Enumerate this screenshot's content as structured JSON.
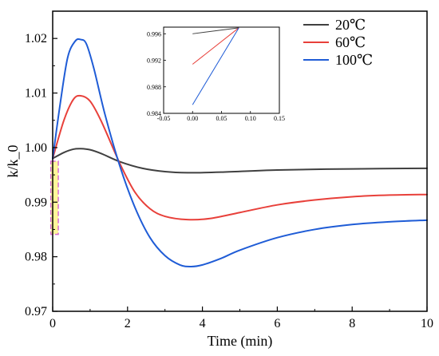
{
  "chart_data": {
    "type": "line",
    "xlabel": "Time (min)",
    "ylabel": "k/k_0",
    "xlim": [
      0,
      10
    ],
    "ylim": [
      0.97,
      1.025
    ],
    "xticks": [
      0,
      2,
      4,
      6,
      8,
      10
    ],
    "yticks": [
      0.97,
      0.98,
      0.99,
      1.0,
      1.01,
      1.02
    ],
    "ytick_labels": [
      "0.97",
      "0.98",
      "0.99",
      "1.00",
      "1.01",
      "1.02"
    ],
    "grid": false,
    "legend_position": "top-right",
    "series": [
      {
        "name": "20℃",
        "color": "#404040",
        "x": [
          0,
          0.3,
          0.55,
          0.75,
          1.0,
          1.3,
          1.8,
          2.4,
          3.0,
          3.6,
          4.5,
          6.0,
          8.0,
          10.0
        ],
        "y": [
          0.998,
          0.9991,
          0.9997,
          0.9998,
          0.9996,
          0.9989,
          0.9974,
          0.9962,
          0.9956,
          0.9954,
          0.9955,
          0.9959,
          0.9961,
          0.9962
        ]
      },
      {
        "name": "60℃",
        "color": "#e8403a",
        "x": [
          0,
          0.3,
          0.55,
          0.75,
          1.0,
          1.3,
          1.8,
          2.2,
          2.6,
          3.0,
          3.6,
          4.2,
          5.0,
          6.0,
          7.0,
          8.0,
          9.0,
          10.0
        ],
        "y": [
          0.998,
          1.005,
          1.0088,
          1.0095,
          1.0085,
          1.0048,
          0.997,
          0.9918,
          0.9888,
          0.9874,
          0.9868,
          0.987,
          0.9881,
          0.9895,
          0.9904,
          0.991,
          0.9913,
          0.9914
        ]
      },
      {
        "name": "100℃",
        "color": "#1f5cd6",
        "x": [
          0,
          0.2,
          0.4,
          0.6,
          0.75,
          0.9,
          1.1,
          1.4,
          1.8,
          2.2,
          2.6,
          3.0,
          3.4,
          3.7,
          4.0,
          4.5,
          5.0,
          6.0,
          7.0,
          8.0,
          9.0,
          10.0
        ],
        "y": [
          0.998,
          1.008,
          1.0165,
          1.0195,
          1.0198,
          1.019,
          1.0145,
          1.006,
          0.9965,
          0.989,
          0.9835,
          0.9802,
          0.9785,
          0.9782,
          0.9785,
          0.9797,
          0.9812,
          0.9835,
          0.985,
          0.9859,
          0.9864,
          0.9867
        ]
      }
    ],
    "highlight_box": {
      "x_range": [
        -0.05,
        0.15
      ],
      "y_range": [
        0.9841,
        0.9975
      ],
      "fill": "#fff79a",
      "stroke": "#d66ad1"
    },
    "inset": {
      "xlim": [
        -0.05,
        0.15
      ],
      "ylim": [
        0.984,
        0.997
      ],
      "xticks": [
        -0.05,
        0.0,
        0.05,
        0.1,
        0.15
      ],
      "xtick_labels": [
        "-0.05",
        "0.00",
        "0.05",
        "0.10",
        "0.15"
      ],
      "yticks": [
        0.984,
        0.988,
        0.992,
        0.996
      ],
      "ytick_labels": [
        "0.984",
        "0.988",
        "0.992",
        "0.996"
      ],
      "series": [
        {
          "color": "#404040",
          "x": [
            0.0,
            0.08
          ],
          "y": [
            0.996,
            0.9969
          ]
        },
        {
          "color": "#e8403a",
          "x": [
            0.0,
            0.08
          ],
          "y": [
            0.9914,
            0.9969
          ]
        },
        {
          "color": "#1f5cd6",
          "x": [
            0.0,
            0.08
          ],
          "y": [
            0.9853,
            0.9969
          ]
        }
      ]
    }
  }
}
